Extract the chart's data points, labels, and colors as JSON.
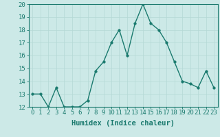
{
  "x": [
    0,
    1,
    2,
    3,
    4,
    5,
    6,
    7,
    8,
    9,
    10,
    11,
    12,
    13,
    14,
    15,
    16,
    17,
    18,
    19,
    20,
    21,
    22,
    23
  ],
  "y": [
    13,
    13,
    12,
    13.5,
    12,
    12,
    12,
    12.5,
    14.8,
    15.5,
    17,
    18,
    16,
    18.5,
    20,
    18.5,
    18,
    17,
    15.5,
    14,
    13.8,
    13.5,
    14.8,
    13.5
  ],
  "line_color": "#1a7a6e",
  "marker_color": "#1a7a6e",
  "bg_color": "#cce9e7",
  "grid_color": "#b5d8d5",
  "xlabel": "Humidex (Indice chaleur)",
  "ylim": [
    12,
    20
  ],
  "xlim_min": -0.5,
  "xlim_max": 23.5,
  "yticks": [
    12,
    13,
    14,
    15,
    16,
    17,
    18,
    19,
    20
  ],
  "xticks": [
    0,
    1,
    2,
    3,
    4,
    5,
    6,
    7,
    8,
    9,
    10,
    11,
    12,
    13,
    14,
    15,
    16,
    17,
    18,
    19,
    20,
    21,
    22,
    23
  ],
  "xlabel_fontsize": 7.5,
  "tick_fontsize": 6.5,
  "line_width": 1.0,
  "marker_size": 2.5
}
